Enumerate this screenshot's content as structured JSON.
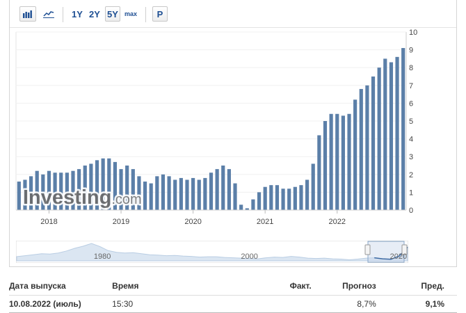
{
  "toolbar": {
    "buttons": [
      "1Y",
      "2Y",
      "5Y",
      "max",
      "P"
    ],
    "active": "5Y",
    "icons": [
      "bar-chart-icon",
      "line-chart-icon"
    ]
  },
  "watermark": {
    "brand": "Investing",
    "suffix": ".com"
  },
  "colors": {
    "bar": "#5b7fa8",
    "link": "#1e4f93",
    "navigator_fill": "#dbe6f2",
    "navigator_line": "#b9cde3"
  },
  "chart_data": {
    "type": "bar",
    "ylim": [
      0,
      10
    ],
    "yticks": [
      "0",
      "1",
      "2",
      "3",
      "4",
      "5",
      "6",
      "7",
      "8",
      "9",
      "10"
    ],
    "x_ticks": [
      {
        "label": "2018",
        "index": 5
      },
      {
        "label": "2019",
        "index": 17
      },
      {
        "label": "2020",
        "index": 29
      },
      {
        "label": "2021",
        "index": 41
      },
      {
        "label": "2022",
        "index": 53
      }
    ],
    "values": [
      1.6,
      1.7,
      1.9,
      2.2,
      2.0,
      2.2,
      2.1,
      2.1,
      2.1,
      2.2,
      2.3,
      2.5,
      2.6,
      2.8,
      2.9,
      2.9,
      2.7,
      2.3,
      2.5,
      2.3,
      1.9,
      1.6,
      1.5,
      1.9,
      2.0,
      1.9,
      1.7,
      1.8,
      1.7,
      1.8,
      1.7,
      1.8,
      2.1,
      2.3,
      2.5,
      2.3,
      1.5,
      0.3,
      0.1,
      0.6,
      1.0,
      1.3,
      1.4,
      1.4,
      1.2,
      1.2,
      1.3,
      1.4,
      1.7,
      2.6,
      4.2,
      5.0,
      5.4,
      5.4,
      5.3,
      5.4,
      6.2,
      6.8,
      7.0,
      7.5,
      8.0,
      8.5,
      8.3,
      8.6,
      9.1
    ]
  },
  "navigator": {
    "labels": [
      "1980",
      "2000",
      "2020"
    ],
    "series": [
      2.5,
      3.0,
      3.6,
      4.2,
      4.0,
      4.6,
      5.8,
      7.4,
      8.6,
      10.2,
      8.4,
      6.0,
      5.0,
      4.6,
      4.8,
      4.2,
      3.6,
      3.4,
      3.0,
      3.2,
      2.8,
      2.6,
      2.2,
      2.4,
      2.4,
      2.0,
      1.8,
      1.6,
      1.4,
      1.2,
      1.8,
      2.2,
      2.0,
      2.6,
      2.2,
      1.6,
      1.4,
      1.6,
      1.2,
      1.0,
      0.6,
      1.0,
      1.6,
      1.8,
      1.2,
      0.9,
      2.8,
      8.0
    ]
  },
  "table": {
    "headers": {
      "date": "Дата выпуска",
      "time": "Время",
      "actual": "Факт.",
      "forecast": "Прогноз",
      "previous": "Пред."
    },
    "rows": [
      {
        "date": "10.08.2022 (июль)",
        "time": "15:30",
        "actual": "",
        "forecast": "8,7%",
        "previous": "9,1%"
      }
    ]
  }
}
